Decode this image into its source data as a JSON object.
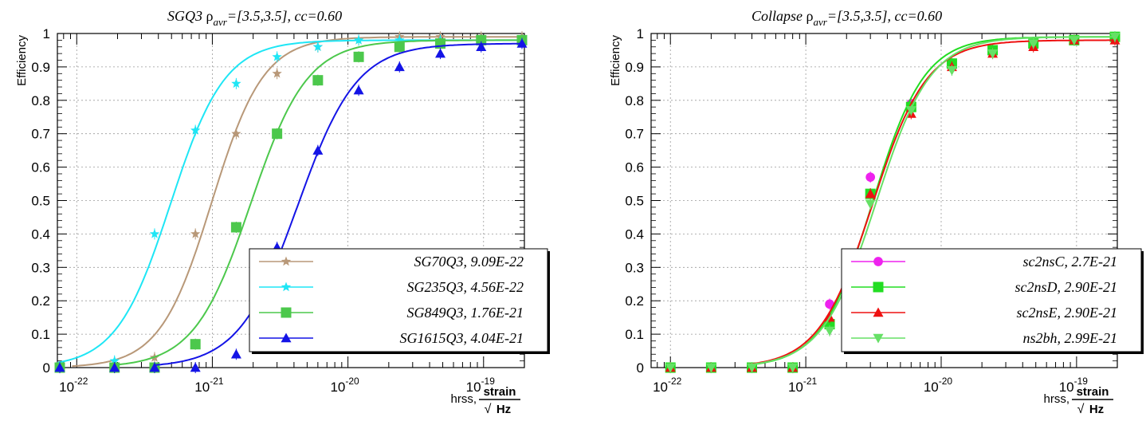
{
  "chart_data": [
    {
      "type": "line",
      "title": {
        "main": "SGQ3",
        "rho": "ρ",
        "sub": "avr",
        "rest": "=[3.5,3.5], cc=0.60"
      },
      "ylabel": "Efficiency",
      "xlabel": {
        "main": "hrss,",
        "num": "strain",
        "den": "Hz",
        "root": "√"
      },
      "xscale": "log",
      "xlim": [
        7.2e-23,
        2e-19
      ],
      "ylim": [
        0,
        1
      ],
      "x_ticks": [
        {
          "base": "10",
          "exp": "-22",
          "value": 1e-22
        },
        {
          "base": "10",
          "exp": "-21",
          "value": 1e-21
        },
        {
          "base": "10",
          "exp": "-20",
          "value": 1e-20
        },
        {
          "base": "10",
          "exp": "-19",
          "value": 1e-19
        }
      ],
      "y_ticks": [
        "0",
        "0.1",
        "0.2",
        "0.3",
        "0.4",
        "0.5",
        "0.6",
        "0.7",
        "0.8",
        "0.9",
        "1"
      ],
      "grid": true,
      "legend_position": "bottom-right",
      "series": [
        {
          "name": "SG70Q3, 9.09E-22",
          "color": "#b89878",
          "marker": "star",
          "x": [
            7.5e-23,
            1.9e-22,
            3.75e-22,
            7.5e-22,
            1.5e-21,
            3e-21,
            6e-21,
            1.2e-20,
            2.4e-20,
            4.8e-20,
            9.6e-20,
            1.92e-19
          ],
          "y": [
            0,
            0,
            0.03,
            0.4,
            0.7,
            0.88,
            0.96,
            0.98,
            0.99,
            0.99,
            0.99,
            0.99
          ]
        },
        {
          "name": "SG235Q3, 4.56E-22",
          "color": "#1ee6f5",
          "marker": "star",
          "x": [
            7.5e-23,
            1.9e-22,
            3.75e-22,
            7.5e-22,
            1.5e-21,
            3e-21,
            6e-21,
            1.2e-20,
            2.4e-20,
            4.8e-20,
            9.6e-20,
            1.92e-19
          ],
          "y": [
            0,
            0.02,
            0.4,
            0.71,
            0.85,
            0.93,
            0.96,
            0.98,
            0.98,
            0.98,
            0.98,
            0.98
          ]
        },
        {
          "name": "SG849Q3, 1.76E-21",
          "color": "#4cc84c",
          "marker": "square",
          "x": [
            7.5e-23,
            1.9e-22,
            3.75e-22,
            7.5e-22,
            1.5e-21,
            3e-21,
            6e-21,
            1.2e-20,
            2.4e-20,
            4.8e-20,
            9.6e-20,
            1.92e-19
          ],
          "y": [
            0,
            0,
            0,
            0.07,
            0.42,
            0.7,
            0.86,
            0.93,
            0.96,
            0.97,
            0.98,
            0.98
          ]
        },
        {
          "name": "SG1615Q3, 4.04E-21",
          "color": "#1414e6",
          "marker": "triangle",
          "x": [
            7.5e-23,
            1.9e-22,
            3.75e-22,
            7.5e-22,
            1.5e-21,
            3e-21,
            6e-21,
            1.2e-20,
            2.4e-20,
            4.8e-20,
            9.6e-20,
            1.92e-19
          ],
          "y": [
            0,
            0,
            0,
            0,
            0.04,
            0.36,
            0.65,
            0.83,
            0.9,
            0.94,
            0.96,
            0.97
          ]
        }
      ]
    },
    {
      "type": "line",
      "title": {
        "main": "Collapse",
        "rho": "ρ",
        "sub": "avr",
        "rest": "=[3.5,3.5], cc=0.60"
      },
      "ylabel": "Efficiency",
      "xlabel": {
        "main": "hrss,",
        "num": "strain",
        "den": "Hz",
        "root": "√"
      },
      "xscale": "log",
      "xlim": [
        7.2e-23,
        2e-19
      ],
      "ylim": [
        0,
        1
      ],
      "x_ticks": [
        {
          "base": "10",
          "exp": "-22",
          "value": 1e-22
        },
        {
          "base": "10",
          "exp": "-21",
          "value": 1e-21
        },
        {
          "base": "10",
          "exp": "-20",
          "value": 1e-20
        },
        {
          "base": "10",
          "exp": "-19",
          "value": 1e-19
        }
      ],
      "y_ticks": [
        "0",
        "0.1",
        "0.2",
        "0.3",
        "0.4",
        "0.5",
        "0.6",
        "0.7",
        "0.8",
        "0.9",
        "1"
      ],
      "grid": true,
      "legend_position": "bottom-right",
      "series": [
        {
          "name": "sc2nsC,  2.7E-21",
          "color": "#ee22ee",
          "marker": "circle",
          "x": [
            1.5e-21,
            3e-21,
            6e-21
          ],
          "y": [
            0.19,
            0.57,
            0.79
          ]
        },
        {
          "name": "sc2nsD, 2.90E-21",
          "color": "#22dd22",
          "marker": "square",
          "x": [
            1e-22,
            2e-22,
            4e-22,
            8e-22,
            1.5e-21,
            3e-21,
            6e-21,
            1.2e-20,
            2.4e-20,
            4.8e-20,
            9.6e-20,
            1.92e-19
          ],
          "y": [
            0,
            0,
            0,
            0,
            0.13,
            0.52,
            0.78,
            0.91,
            0.95,
            0.97,
            0.98,
            0.99
          ]
        },
        {
          "name": "sc2nsE, 2.90E-21",
          "color": "#ee1111",
          "marker": "triangle",
          "x": [
            1e-22,
            2e-22,
            4e-22,
            8e-22,
            1.5e-21,
            3e-21,
            6e-21,
            1.2e-20,
            2.4e-20,
            4.8e-20,
            9.6e-20,
            1.92e-19
          ],
          "y": [
            0,
            0,
            0,
            0,
            0.15,
            0.52,
            0.76,
            0.9,
            0.94,
            0.96,
            0.98,
            0.98
          ]
        },
        {
          "name": "ns2bh, 2.99E-21",
          "color": "#66e066",
          "marker": "triangle-down",
          "x": [
            1e-22,
            2e-22,
            4e-22,
            8e-22,
            1.5e-21,
            3e-21,
            6e-21,
            1.2e-20,
            2.4e-20,
            4.8e-20,
            9.6e-20,
            1.92e-19
          ],
          "y": [
            0,
            0,
            0,
            0,
            0.11,
            0.49,
            0.77,
            0.89,
            0.94,
            0.97,
            0.98,
            0.99
          ]
        }
      ]
    }
  ]
}
